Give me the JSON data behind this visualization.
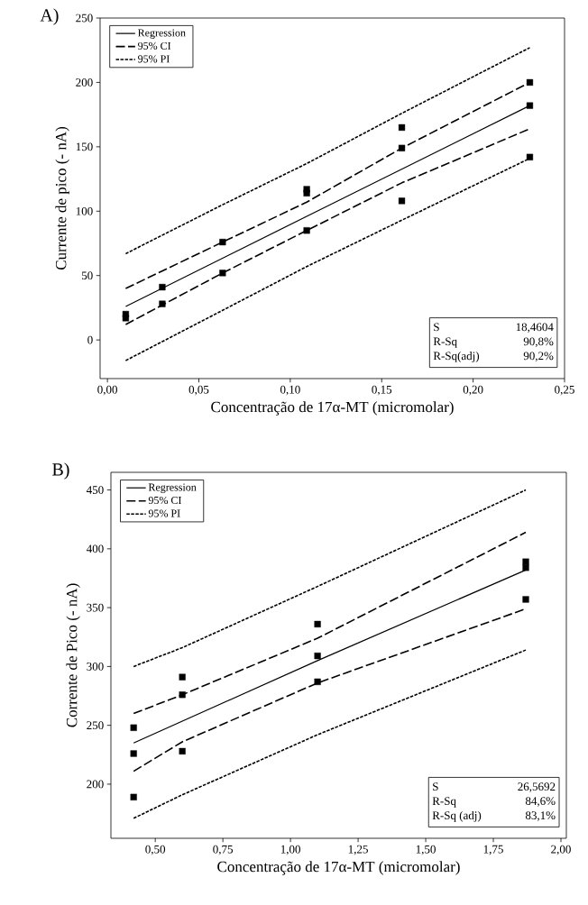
{
  "chart_data": [
    {
      "type": "line",
      "title": "A)",
      "xlabel": "Concentração de 17α-MT  (micromolar)",
      "ylabel": "Currente de pico (- nA)",
      "xlim": [
        -0.004,
        0.25
      ],
      "ylim": [
        -30,
        250
      ],
      "xticks": [
        {
          "value": 0,
          "label": "0,00"
        },
        {
          "value": 0.05,
          "label": "0,05"
        },
        {
          "value": 0.1,
          "label": "0,10"
        },
        {
          "value": 0.15,
          "label": "0,15"
        },
        {
          "value": 0.2,
          "label": "0,20"
        },
        {
          "value": 0.25,
          "label": "0,25"
        }
      ],
      "yticks": [
        0,
        50,
        100,
        150,
        200,
        250
      ],
      "legend": "top left",
      "annotations": [
        "S",
        "18,4604",
        "R-Sq",
        "90,8%",
        "R-Sq(adj)",
        "90,2%"
      ],
      "series": [
        {
          "type": "scatter",
          "marker": "square",
          "color": "#000000",
          "x": [
            0.01,
            0.01,
            0.03,
            0.03,
            0.063,
            0.063,
            0.109,
            0.109,
            0.109,
            0.161,
            0.161,
            0.161,
            0.231,
            0.231,
            0.231
          ],
          "values": [
            17,
            20,
            41,
            28,
            76,
            52,
            117,
            114,
            85,
            165,
            149,
            108,
            200,
            182,
            142
          ]
        },
        {
          "name": "Regression",
          "line_style": "solid",
          "color": "#000000",
          "x": [
            0.01,
            0.109,
            0.231
          ],
          "values": [
            26,
            96,
            182
          ]
        },
        {
          "name": "95% CI",
          "line_style": "dashed",
          "color": "#000000",
          "x": [
            0.01,
            0.063,
            0.109,
            0.161,
            0.231
          ],
          "values": [
            40,
            76,
            107,
            149,
            200
          ]
        },
        {
          "line_style": "dashed",
          "color": "#000000",
          "x": [
            0.01,
            0.063,
            0.109,
            0.161,
            0.231
          ],
          "values": [
            12,
            52,
            85,
            122,
            164
          ]
        },
        {
          "name": "95% PI",
          "line_style": "dotted",
          "color": "#000000",
          "x": [
            0.01,
            0.063,
            0.109,
            0.161,
            0.231
          ],
          "values": [
            67,
            105,
            137,
            176,
            227
          ]
        },
        {
          "line_style": "dotted",
          "color": "#000000",
          "x": [
            0.01,
            0.063,
            0.109,
            0.161,
            0.231
          ],
          "values": [
            -16,
            23,
            57,
            93,
            141
          ]
        }
      ]
    },
    {
      "type": "line",
      "title": "B)",
      "xlabel": "Concentração de 17α-MT  (micromolar)",
      "ylabel": "Corrente de Pico (- nA)",
      "xlim": [
        0.336,
        2.02
      ],
      "ylim": [
        154,
        465
      ],
      "xticks": [
        {
          "value": 0.5,
          "label": "0,50"
        },
        {
          "value": 0.75,
          "label": "0,75"
        },
        {
          "value": 1.0,
          "label": "1,00"
        },
        {
          "value": 1.25,
          "label": "1,25"
        },
        {
          "value": 1.5,
          "label": "1,50"
        },
        {
          "value": 1.75,
          "label": "1,75"
        },
        {
          "value": 2.0,
          "label": "2,00"
        }
      ],
      "yticks": [
        200,
        250,
        300,
        350,
        400,
        450
      ],
      "legend": "top left",
      "annotations": [
        "S",
        "26,5692",
        "R-Sq",
        "84,6%",
        "R-Sq (adj)",
        "83,1%"
      ],
      "series": [
        {
          "type": "scatter",
          "marker": "square",
          "color": "#000000",
          "x": [
            0.42,
            0.42,
            0.42,
            0.6,
            0.6,
            0.6,
            1.1,
            1.1,
            1.1,
            1.87,
            1.87,
            1.87
          ],
          "values": [
            248,
            226,
            189,
            291,
            276,
            228,
            336,
            309,
            287,
            389,
            384,
            357
          ]
        },
        {
          "name": "Regression",
          "line_style": "solid",
          "color": "#000000",
          "x": [
            0.42,
            1.1,
            1.87
          ],
          "values": [
            235,
            305,
            382
          ]
        },
        {
          "name": "95% CI",
          "line_style": "dashed",
          "color": "#000000",
          "x": [
            0.42,
            0.6,
            1.1,
            1.87
          ],
          "values": [
            260,
            276,
            324,
            414
          ]
        },
        {
          "line_style": "dashed",
          "color": "#000000",
          "x": [
            0.42,
            0.6,
            1.1,
            1.87
          ],
          "values": [
            211,
            236,
            286,
            349
          ]
        },
        {
          "name": "95% PI",
          "line_style": "dotted",
          "color": "#000000",
          "x": [
            0.42,
            0.6,
            1.1,
            1.87
          ],
          "values": [
            300,
            316,
            368,
            450
          ]
        },
        {
          "line_style": "dotted",
          "color": "#000000",
          "x": [
            0.42,
            0.6,
            1.1,
            1.87
          ],
          "values": [
            171,
            191,
            242,
            314
          ]
        }
      ]
    }
  ]
}
